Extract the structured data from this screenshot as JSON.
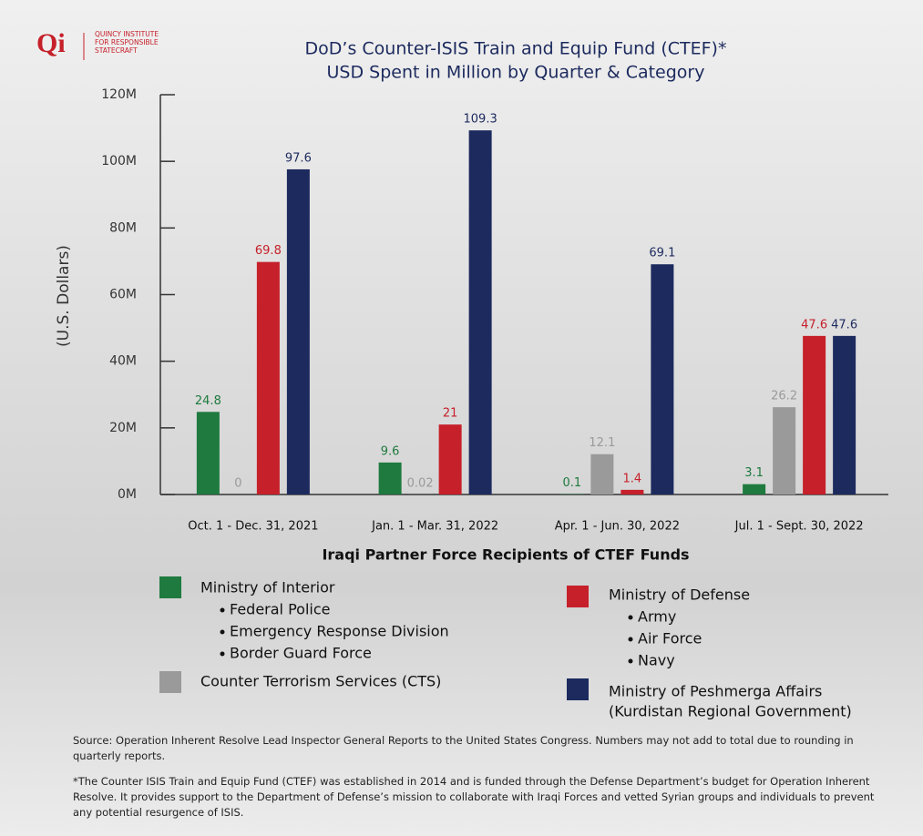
{
  "chart_data": {
    "type": "bar",
    "logo": {
      "mark": "Qi",
      "lines": [
        "QUINCY INSTITUTE",
        "FOR RESPONSIBLE",
        "STATECRAFT"
      ]
    },
    "title": "DoD’s Counter-ISIS Train and Equip Fund (CTEF)*",
    "subtitle": "USD Spent in Million by Quarter & Category",
    "y_label": "(U.S. Dollars)",
    "categories": [
      "Oct. 1 - Dec. 31, 2021",
      "Jan. 1 - Mar. 31, 2022",
      "Apr. 1 - Jun. 30, 2022",
      "Jul. 1 - Sept. 30, 2022"
    ],
    "series": [
      {
        "name": "Ministry of Interior",
        "color": "#1e7a3e",
        "values": [
          24.8,
          9.6,
          0.1,
          3.1
        ],
        "items": [
          "Federal Police",
          "Emergency Response Division",
          "Border Guard Force"
        ]
      },
      {
        "name": "Counter Terrorism Services (CTS)",
        "color": "#9a9a9a",
        "values": [
          0,
          0.02,
          12.1,
          26.2
        ],
        "items": []
      },
      {
        "name": "Ministry of Defense",
        "color": "#c6202a",
        "values": [
          69.8,
          21,
          1.4,
          47.6
        ],
        "items": [
          "Army",
          "Air Force",
          "Navy"
        ]
      },
      {
        "name": "Ministry of Peshmerga Affairs",
        "color": "#1c2a5e",
        "values": [
          97.6,
          109.3,
          69.1,
          47.6
        ],
        "items": [
          "(Kurdistan Regional Government)"
        ]
      }
    ],
    "ylim": [
      0,
      120
    ],
    "yticks": [
      {
        "value": 0,
        "label": "0M"
      },
      {
        "value": 20,
        "label": "20M"
      },
      {
        "value": 40,
        "label": "40M"
      },
      {
        "value": 60,
        "label": "60M"
      },
      {
        "value": 80,
        "label": "80M"
      },
      {
        "value": 100,
        "label": "100M"
      },
      {
        "value": 120,
        "label": "120M"
      }
    ],
    "legend_title": "Iraqi Partner Force Recipients of CTEF Funds",
    "notes": [
      "Source: Operation Inherent Resolve Lead Inspector General Reports to the United States Congress. Numbers may not add to total due to rounding in quarterly reports.",
      "*The Counter ISIS Train and Equip Fund (CTEF) was established in 2014 and is funded through the Defense Department’s budget for Operation Inherent Resolve. It provides support to the Department of Defense’s mission to collaborate with Iraqi Forces and vetted Syrian groups and individuals to prevent any potential resurgence of ISIS."
    ]
  }
}
